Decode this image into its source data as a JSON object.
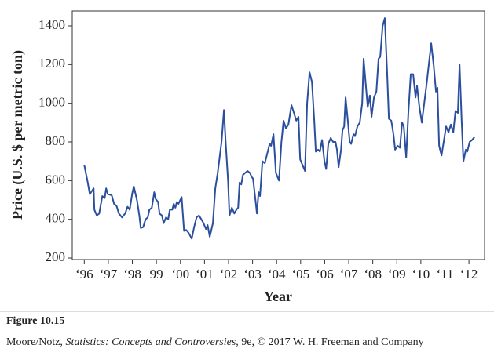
{
  "chart_data": {
    "type": "line",
    "y_label": "Price (U.S. $ per metric ton)",
    "x_label": "Year",
    "figure_label": "Figure 10.15",
    "credit": [
      "Moore/Notz, ",
      "Statistics: Concepts and Controversies",
      ", 9e, © 2017 W. H. Freeman and Company"
    ],
    "xlim": [
      1995.5,
      2012.65
    ],
    "ylim": [
      192,
      1477
    ],
    "yticks": [
      200,
      400,
      600,
      800,
      1000,
      1200,
      1400
    ],
    "xticks": [
      {
        "value": 1996,
        "label": "‘96"
      },
      {
        "value": 1997,
        "label": "‘97"
      },
      {
        "value": 1998,
        "label": "‘98"
      },
      {
        "value": 1999,
        "label": "99"
      },
      {
        "value": 2000,
        "label": "‘00"
      },
      {
        "value": 2001,
        "label": "‘01"
      },
      {
        "value": 2002,
        "label": "‘02"
      },
      {
        "value": 2003,
        "label": "‘03"
      },
      {
        "value": 2004,
        "label": "‘04"
      },
      {
        "value": 2005,
        "label": "‘05"
      },
      {
        "value": 2006,
        "label": "‘06"
      },
      {
        "value": 2007,
        "label": "‘07"
      },
      {
        "value": 2008,
        "label": "‘08"
      },
      {
        "value": 2009,
        "label": "‘09"
      },
      {
        "value": 2010,
        "label": "‘10"
      },
      {
        "value": 2011,
        "label": "‘11"
      },
      {
        "value": 2012,
        "label": "‘12"
      }
    ],
    "color": "#2b4f9e",
    "x": [
      1996.0,
      1996.13,
      1996.23,
      1996.39,
      1996.42,
      1996.52,
      1996.62,
      1996.75,
      1996.85,
      1996.91,
      1996.98,
      1997.14,
      1997.24,
      1997.34,
      1997.44,
      1997.57,
      1997.7,
      1997.8,
      1997.89,
      1997.99,
      1998.06,
      1998.19,
      1998.29,
      1998.35,
      1998.45,
      1998.55,
      1998.64,
      1998.71,
      1998.81,
      1998.91,
      1998.97,
      1999.07,
      1999.13,
      1999.23,
      1999.3,
      1999.4,
      1999.49,
      1999.56,
      1999.66,
      1999.72,
      1999.79,
      1999.85,
      1999.92,
      2000.05,
      2000.15,
      2000.24,
      2000.34,
      2000.47,
      2000.57,
      2000.67,
      2000.77,
      2000.87,
      2000.96,
      2001.06,
      2001.13,
      2001.22,
      2001.35,
      2001.45,
      2001.55,
      2001.71,
      2001.81,
      2001.88,
      2001.98,
      2002.04,
      2002.14,
      2002.24,
      2002.33,
      2002.4,
      2002.46,
      2002.53,
      2002.6,
      2002.69,
      2002.79,
      2002.89,
      2002.96,
      2003.02,
      2003.12,
      2003.18,
      2003.25,
      2003.31,
      2003.41,
      2003.51,
      2003.61,
      2003.71,
      2003.77,
      2003.87,
      2003.97,
      2004.1,
      2004.2,
      2004.29,
      2004.39,
      2004.49,
      2004.62,
      2004.72,
      2004.82,
      2004.91,
      2004.98,
      2005.08,
      2005.18,
      2005.27,
      2005.37,
      2005.47,
      2005.57,
      2005.63,
      2005.73,
      2005.8,
      2005.89,
      2005.99,
      2006.06,
      2006.15,
      2006.25,
      2006.35,
      2006.45,
      2006.51,
      2006.58,
      2006.68,
      2006.74,
      2006.81,
      2006.87,
      2006.97,
      2007.04,
      2007.1,
      2007.2,
      2007.26,
      2007.36,
      2007.46,
      2007.56,
      2007.62,
      2007.72,
      2007.79,
      2007.88,
      2007.95,
      2008.05,
      2008.15,
      2008.24,
      2008.31,
      2008.41,
      2008.5,
      2008.6,
      2008.67,
      2008.77,
      2008.86,
      2008.93,
      2009.03,
      2009.13,
      2009.22,
      2009.29,
      2009.39,
      2009.48,
      2009.58,
      2009.68,
      2009.78,
      2009.84,
      2009.94,
      2010.04,
      2010.14,
      2010.24,
      2010.33,
      2010.43,
      2010.53,
      2010.63,
      2010.69,
      2010.76,
      2010.86,
      2010.95,
      2011.05,
      2011.15,
      2011.25,
      2011.35,
      2011.44,
      2011.54,
      2011.61,
      2011.7,
      2011.77,
      2011.87,
      2011.93,
      2012.03,
      2012.13,
      2012.23
    ],
    "values": [
      680,
      600,
      530,
      560,
      450,
      420,
      430,
      520,
      510,
      560,
      530,
      525,
      480,
      470,
      430,
      410,
      430,
      465,
      450,
      530,
      570,
      500,
      420,
      355,
      360,
      400,
      410,
      450,
      460,
      540,
      505,
      490,
      430,
      420,
      380,
      410,
      400,
      450,
      450,
      480,
      460,
      490,
      480,
      515,
      340,
      345,
      330,
      300,
      360,
      410,
      420,
      400,
      380,
      350,
      370,
      310,
      380,
      560,
      640,
      800,
      965,
      800,
      600,
      420,
      460,
      430,
      450,
      460,
      590,
      580,
      630,
      640,
      650,
      640,
      620,
      610,
      500,
      430,
      540,
      520,
      700,
      690,
      740,
      790,
      780,
      840,
      640,
      600,
      800,
      910,
      870,
      890,
      990,
      950,
      910,
      930,
      710,
      680,
      650,
      1000,
      1160,
      1110,
      900,
      750,
      760,
      750,
      810,
      700,
      660,
      790,
      820,
      800,
      800,
      760,
      670,
      760,
      860,
      880,
      1030,
      900,
      800,
      790,
      840,
      830,
      880,
      900,
      1000,
      1230,
      1080,
      980,
      1040,
      930,
      1030,
      1060,
      1230,
      1240,
      1400,
      1440,
      1150,
      920,
      910,
      840,
      760,
      780,
      770,
      900,
      880,
      720,
      950,
      1150,
      1150,
      1030,
      1090,
      980,
      900,
      1000,
      1100,
      1200,
      1310,
      1200,
      1060,
      1080,
      780,
      730,
      800,
      880,
      850,
      890,
      850,
      960,
      950,
      1200,
      900,
      700,
      760,
      750,
      800,
      810,
      825
    ]
  }
}
